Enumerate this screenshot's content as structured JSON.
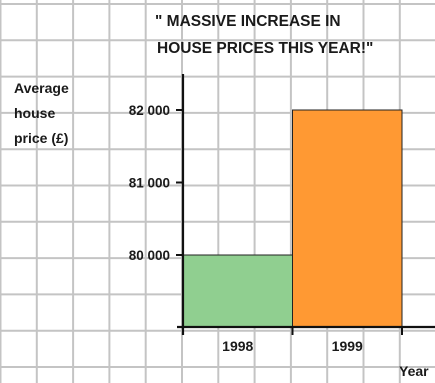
{
  "chart_data": {
    "type": "bar",
    "title": "\" MASSIVE INCREASE  IN",
    "subtitle": "HOUSE PRICES THIS YEAR!\"",
    "ylabel_lines": [
      "Average",
      "house",
      "price (£)"
    ],
    "xlabel": "Year",
    "categories": [
      "1998",
      "1999"
    ],
    "series": [
      {
        "values": [
          80000,
          82000
        ]
      }
    ],
    "bar_colors": [
      "#90cf90",
      "#ff9933"
    ],
    "ylim": [
      79000,
      82700
    ],
    "yticks": [
      80000,
      81000,
      82000
    ],
    "ytick_labels": [
      "80 000",
      "81 000",
      "82 000"
    ],
    "grid": true,
    "colors": {
      "grid": "#c4c4c4",
      "axis": "#111111",
      "bar_edge": "#222222"
    }
  }
}
